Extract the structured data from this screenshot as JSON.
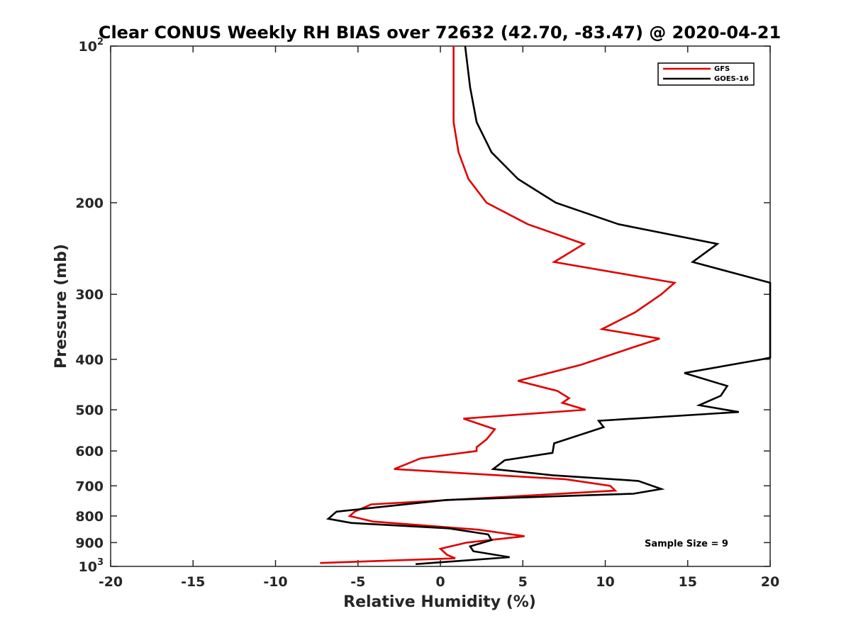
{
  "chart_data": {
    "type": "line",
    "title": "Clear CONUS Weekly RH BIAS over 72632 (42.70, -83.47) @ 2020-04-21",
    "xlabel": "Relative Humidity (%)",
    "ylabel": "Pressure (mb)",
    "xlim": [
      -20,
      20
    ],
    "ylim": [
      100,
      1000
    ],
    "y_scale": "log",
    "y_reversed": true,
    "grid": false,
    "legend_position": "top-right",
    "x_ticks": [
      -20,
      -15,
      -10,
      -5,
      0,
      5,
      10,
      15,
      20
    ],
    "x_tick_labels": [
      "-20",
      "-15",
      "-10",
      "-5",
      "0",
      "5",
      "10",
      "15",
      "20"
    ],
    "y_ticks": [
      {
        "value": 100,
        "base": "10",
        "exp": "2"
      },
      {
        "value": 200,
        "label": "200"
      },
      {
        "value": 300,
        "label": "300"
      },
      {
        "value": 400,
        "label": "400"
      },
      {
        "value": 500,
        "label": "500"
      },
      {
        "value": 600,
        "label": "600"
      },
      {
        "value": 700,
        "label": "700"
      },
      {
        "value": 800,
        "label": "800"
      },
      {
        "value": 900,
        "label": "900"
      },
      {
        "value": 1000,
        "base": "10",
        "exp": "3"
      }
    ],
    "annotation": "Sample Size = 9",
    "series": [
      {
        "name": "GFS",
        "color": "#e00000",
        "points": [
          {
            "x": 0.8,
            "y": 100
          },
          {
            "x": 0.8,
            "y": 120
          },
          {
            "x": 0.8,
            "y": 140
          },
          {
            "x": 1.1,
            "y": 160
          },
          {
            "x": 1.7,
            "y": 180
          },
          {
            "x": 2.8,
            "y": 200
          },
          {
            "x": 5.3,
            "y": 220
          },
          {
            "x": 8.7,
            "y": 240
          },
          {
            "x": 6.9,
            "y": 260
          },
          {
            "x": 14.2,
            "y": 285
          },
          {
            "x": 13.4,
            "y": 300
          },
          {
            "x": 11.8,
            "y": 325
          },
          {
            "x": 9.8,
            "y": 350
          },
          {
            "x": 13.3,
            "y": 365
          },
          {
            "x": 11.6,
            "y": 380
          },
          {
            "x": 8.5,
            "y": 410
          },
          {
            "x": 4.7,
            "y": 440
          },
          {
            "x": 7.1,
            "y": 460
          },
          {
            "x": 7.8,
            "y": 475
          },
          {
            "x": 7.4,
            "y": 485
          },
          {
            "x": 8.8,
            "y": 500
          },
          {
            "x": 1.4,
            "y": 520
          },
          {
            "x": 3.3,
            "y": 545
          },
          {
            "x": 2.8,
            "y": 570
          },
          {
            "x": 2.2,
            "y": 590
          },
          {
            "x": 2.2,
            "y": 600
          },
          {
            "x": -1.2,
            "y": 620
          },
          {
            "x": -2.8,
            "y": 650
          },
          {
            "x": 7.6,
            "y": 680
          },
          {
            "x": 10.3,
            "y": 700
          },
          {
            "x": 10.6,
            "y": 715
          },
          {
            "x": -4.2,
            "y": 760
          },
          {
            "x": -5.2,
            "y": 785
          },
          {
            "x": -5.5,
            "y": 800
          },
          {
            "x": -4.1,
            "y": 820
          },
          {
            "x": 2.3,
            "y": 850
          },
          {
            "x": 5.1,
            "y": 875
          },
          {
            "x": 1.6,
            "y": 900
          },
          {
            "x": 0.0,
            "y": 925
          },
          {
            "x": 0.4,
            "y": 950
          },
          {
            "x": 0.9,
            "y": 965
          },
          {
            "x": -7.3,
            "y": 985
          }
        ]
      },
      {
        "name": "GOES-16",
        "color": "#000000",
        "points": [
          {
            "x": 1.5,
            "y": 100
          },
          {
            "x": 1.8,
            "y": 120
          },
          {
            "x": 2.2,
            "y": 140
          },
          {
            "x": 3.1,
            "y": 160
          },
          {
            "x": 4.7,
            "y": 180
          },
          {
            "x": 7.0,
            "y": 200
          },
          {
            "x": 10.8,
            "y": 220
          },
          {
            "x": 16.8,
            "y": 240
          },
          {
            "x": 15.3,
            "y": 260
          },
          {
            "x": 20.0,
            "y": 285
          },
          {
            "x": 20.0,
            "y": 397
          },
          {
            "x": 19.5,
            "y": 400
          },
          {
            "x": 14.8,
            "y": 425
          },
          {
            "x": 17.4,
            "y": 450
          },
          {
            "x": 17.0,
            "y": 470
          },
          {
            "x": 15.7,
            "y": 490
          },
          {
            "x": 18.1,
            "y": 505
          },
          {
            "x": 9.6,
            "y": 525
          },
          {
            "x": 9.9,
            "y": 540
          },
          {
            "x": 6.9,
            "y": 580
          },
          {
            "x": 6.8,
            "y": 605
          },
          {
            "x": 3.9,
            "y": 625
          },
          {
            "x": 3.2,
            "y": 650
          },
          {
            "x": 6.8,
            "y": 668
          },
          {
            "x": 12.0,
            "y": 685
          },
          {
            "x": 13.4,
            "y": 710
          },
          {
            "x": 11.7,
            "y": 725
          },
          {
            "x": 0.4,
            "y": 745
          },
          {
            "x": -6.3,
            "y": 785
          },
          {
            "x": -6.8,
            "y": 810
          },
          {
            "x": -5.4,
            "y": 825
          },
          {
            "x": 0.5,
            "y": 845
          },
          {
            "x": 2.9,
            "y": 868
          },
          {
            "x": 3.1,
            "y": 890
          },
          {
            "x": 1.8,
            "y": 915
          },
          {
            "x": 2.0,
            "y": 935
          },
          {
            "x": 4.2,
            "y": 960
          },
          {
            "x": -1.5,
            "y": 990
          }
        ]
      }
    ]
  }
}
